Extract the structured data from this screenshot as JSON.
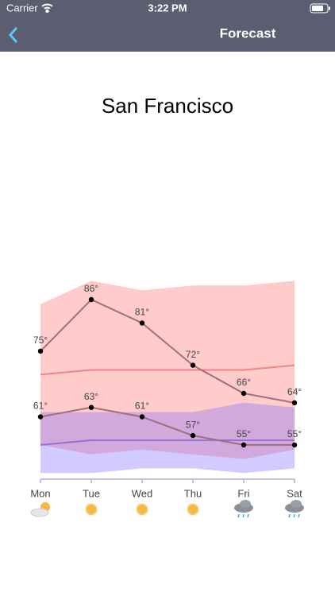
{
  "status_bar": {
    "carrier": "Carrier",
    "time": "3:22 PM"
  },
  "nav": {
    "title": "Forecast"
  },
  "city": "San Francisco",
  "chart_data": {
    "type": "line",
    "categories": [
      "Mon",
      "Tue",
      "Wed",
      "Thu",
      "Fri",
      "Sat"
    ],
    "ylim": [
      48,
      90
    ],
    "bands": [
      {
        "color": "#ff6b6b",
        "high": [
          85,
          90,
          88,
          89,
          89,
          90
        ],
        "low": [
          55,
          53,
          54,
          53,
          52,
          54
        ]
      },
      {
        "color": "#7a6bff",
        "high": [
          62,
          62,
          62,
          62,
          64,
          63
        ],
        "low": [
          49,
          49,
          50,
          50,
          49,
          50
        ]
      }
    ],
    "means": [
      {
        "color": "#f08585",
        "values": [
          70,
          71,
          71,
          71,
          71,
          72
        ]
      },
      {
        "color": "#9a6fd6",
        "values": [
          55,
          56,
          56,
          56,
          56,
          56
        ]
      }
    ],
    "series": [
      {
        "color": "#a26e7a",
        "values": [
          75,
          86,
          81,
          72,
          66,
          64
        ],
        "value_labels": [
          "75°",
          "86°",
          "81°",
          "72°",
          "66°",
          "64°"
        ]
      },
      {
        "color": "#a26e7a",
        "values": [
          61,
          63,
          61,
          57,
          55,
          55
        ],
        "value_labels": [
          "61°",
          "63°",
          "61°",
          "57°",
          "55°",
          "55°"
        ]
      }
    ]
  }
}
